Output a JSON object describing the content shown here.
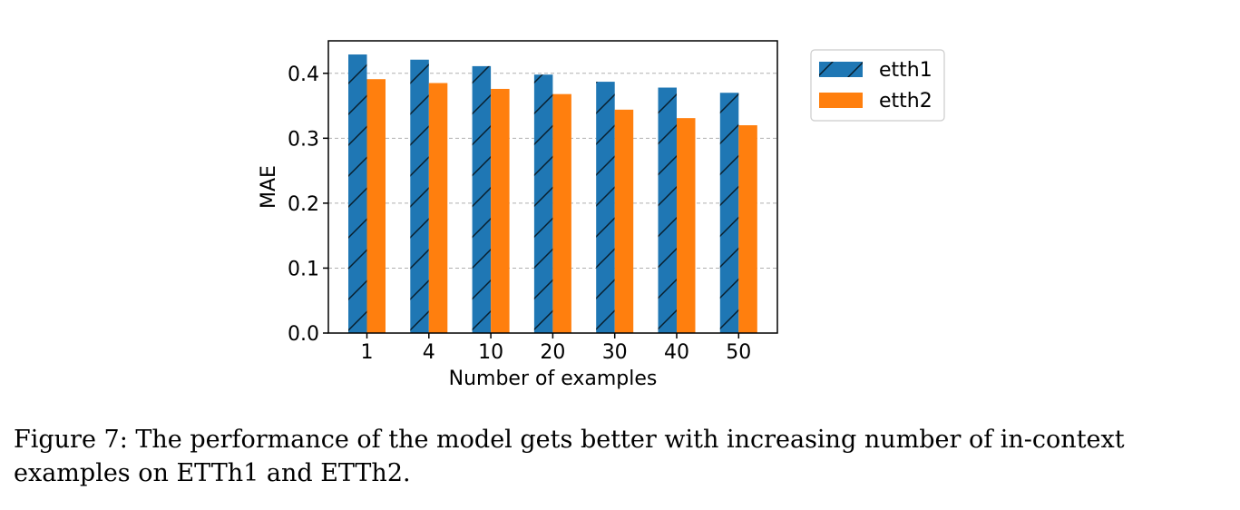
{
  "chart_data": {
    "type": "bar",
    "categories": [
      "1",
      "4",
      "10",
      "20",
      "30",
      "40",
      "50"
    ],
    "series": [
      {
        "name": "etth1",
        "values": [
          0.429,
          0.421,
          0.411,
          0.398,
          0.387,
          0.378,
          0.37
        ],
        "color": "#1f77b4",
        "hatch": "/"
      },
      {
        "name": "etth2",
        "values": [
          0.391,
          0.385,
          0.376,
          0.368,
          0.344,
          0.331,
          0.32
        ],
        "color": "#ff7f0e",
        "hatch": ""
      }
    ],
    "xlabel": "Number of examples",
    "ylabel": "MAE",
    "ylim": [
      0,
      0.45
    ],
    "yticks": [
      0.0,
      0.1,
      0.2,
      0.3,
      0.4
    ],
    "ytick_labels": [
      "0.0",
      "0.1",
      "0.2",
      "0.3",
      "0.4"
    ],
    "grid": "y-dashed",
    "legend": "outside-top-right"
  },
  "caption": "Figure 7: The performance of the model gets better with increasing number of in-context examples on ETTh1 and ETTh2."
}
